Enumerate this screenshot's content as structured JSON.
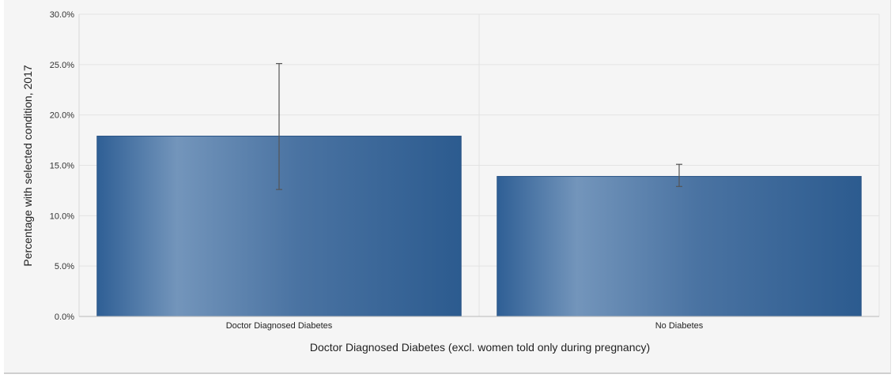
{
  "chart_data": {
    "type": "bar",
    "title": "",
    "xlabel": "Doctor Diagnosed Diabetes (excl. women told only during pregnancy)",
    "ylabel": "Percentage with selected condition, 2017",
    "categories": [
      "Doctor Diagnosed Diabetes",
      "No Diabetes"
    ],
    "series": [
      {
        "values": [
          17.9,
          13.9
        ],
        "error_low": [
          12.6,
          12.9
        ],
        "error_high": [
          25.1,
          15.1
        ]
      }
    ],
    "ylim": [
      0,
      30
    ],
    "yticks": [
      0,
      5,
      10,
      15,
      20,
      25,
      30
    ],
    "ytick_labels": [
      "0.0%",
      "5.0%",
      "10.0%",
      "15.0%",
      "20.0%",
      "25.0%",
      "30.0%"
    ],
    "grid": true,
    "bar_color": "#3a6596",
    "bar_highlight_color": "#7395bb"
  }
}
